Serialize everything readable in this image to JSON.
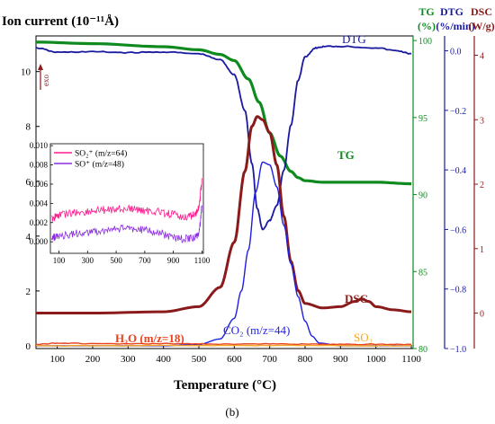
{
  "chart_data": {
    "type": "line",
    "panel_label": "(b)",
    "xlabel": "Temperature (°C)",
    "xlim": [
      40,
      1105
    ],
    "x_ticks": [
      100,
      200,
      300,
      400,
      500,
      600,
      700,
      800,
      900,
      1000,
      1100
    ],
    "left_axis": {
      "label": "Ion current (10⁻¹¹Å)",
      "color": "#000000",
      "ylim": [
        -0.1,
        11.3
      ],
      "ticks": [
        0,
        2,
        4,
        6,
        8,
        10
      ]
    },
    "tg_axis": {
      "label_top": "TG",
      "label_bottom": "(%)",
      "color": "#0f8a1f",
      "ylim": [
        80,
        100.3
      ],
      "ticks": [
        80,
        85,
        90,
        95,
        100
      ]
    },
    "dtg_axis": {
      "label_top": "DTG",
      "label_bottom": "(%/min)",
      "color": "#1a1aa0",
      "ylim": [
        -1.0,
        0.05
      ],
      "ticks": [
        -1.0,
        -0.8,
        -0.6,
        -0.4,
        -0.2,
        0.0
      ]
    },
    "dsc_axis": {
      "label_top": "DSC",
      "label_bottom": "(W/g)",
      "color": "#8b1a1a",
      "ylim": [
        -0.55,
        4.3
      ],
      "ticks": [
        0,
        1,
        2,
        3,
        4
      ]
    },
    "exo_label": "exo",
    "series": [
      {
        "name": "TG",
        "axis": "tg",
        "color": "#0f8a1f",
        "x": [
          40,
          200,
          400,
          500,
          560,
          600,
          640,
          670,
          700,
          730,
          760,
          780,
          800,
          850,
          900,
          1000,
          1100
        ],
        "y": [
          99.9,
          99.8,
          99.6,
          99.4,
          99.1,
          98.7,
          97.5,
          96.0,
          94.0,
          92.5,
          91.5,
          91.1,
          90.9,
          90.8,
          90.8,
          90.8,
          90.7
        ]
      },
      {
        "name": "DTG",
        "axis": "dtg",
        "color": "#1a1aa0",
        "x": [
          40,
          100,
          200,
          300,
          400,
          500,
          560,
          600,
          630,
          650,
          665,
          680,
          700,
          720,
          740,
          760,
          780,
          800,
          830,
          860,
          900,
          1000,
          1060,
          1100
        ],
        "y": [
          0.01,
          -0.005,
          -0.003,
          -0.006,
          -0.004,
          -0.01,
          -0.03,
          -0.08,
          -0.2,
          -0.38,
          -0.53,
          -0.6,
          -0.57,
          -0.52,
          -0.4,
          -0.25,
          -0.1,
          -0.02,
          0.01,
          0.015,
          0.015,
          0.01,
          0.0,
          -0.01
        ]
      },
      {
        "name": "DSC",
        "axis": "dsc",
        "color": "#8b1a1a",
        "x": [
          40,
          200,
          400,
          500,
          560,
          600,
          630,
          650,
          665,
          680,
          700,
          720,
          740,
          760,
          780,
          800,
          850,
          900,
          940,
          960,
          980,
          1000,
          1050,
          1100
        ],
        "y": [
          0.0,
          0.0,
          0.02,
          0.1,
          0.4,
          1.1,
          2.2,
          2.9,
          3.05,
          3.0,
          2.8,
          2.3,
          1.5,
          0.8,
          0.35,
          0.15,
          0.08,
          0.1,
          0.18,
          0.22,
          0.18,
          0.1,
          0.05,
          0.02
        ]
      },
      {
        "name": "CO2 (m/z=44)",
        "axis": "left",
        "color": "#1e1ee0",
        "x": [
          40,
          400,
          500,
          560,
          600,
          620,
          640,
          660,
          680,
          700,
          720,
          740,
          760,
          780,
          800,
          820,
          840,
          900,
          1100
        ],
        "y": [
          0.0,
          0.0,
          0.05,
          0.25,
          1.0,
          2.0,
          3.5,
          5.6,
          6.7,
          6.6,
          5.8,
          4.4,
          3.0,
          1.8,
          0.9,
          0.35,
          0.1,
          0.0,
          0.0
        ]
      },
      {
        "name": "H2O (m/z=18)",
        "axis": "left",
        "color": "#e8421e",
        "x": [
          40,
          100,
          200,
          300,
          400,
          500,
          600,
          700,
          800,
          900,
          1000,
          1100
        ],
        "y": [
          0.05,
          0.1,
          0.08,
          0.07,
          0.08,
          0.07,
          0.06,
          0.07,
          0.06,
          0.06,
          0.05,
          0.05
        ]
      },
      {
        "name": "SO2",
        "axis": "left",
        "color": "#f5a623",
        "x": [
          40,
          200,
          400,
          600,
          800,
          1000,
          1100
        ],
        "y": [
          0.0,
          0.0,
          0.01,
          0.01,
          0.01,
          0.0,
          0.0
        ]
      }
    ],
    "curve_labels": {
      "dtg": "DTG",
      "tg": "TG",
      "dsc": "DSC",
      "co2": "CO₂ (m/z=44)",
      "h2o": "H₂O (m/z=18)",
      "so2": "SO₂"
    },
    "inset": {
      "type": "line",
      "xlim": [
        40,
        1110
      ],
      "ylim": [
        -0.0012,
        0.0102
      ],
      "x_ticks": [
        100,
        300,
        500,
        700,
        900,
        1100
      ],
      "y_ticks": [
        0.0,
        0.002,
        0.004,
        0.006,
        0.008,
        0.01
      ],
      "y_tick_labels": [
        "0.000",
        "0.002",
        "0.004",
        "0.006",
        "0.008",
        "0.010"
      ],
      "series": [
        {
          "name": "SO₂⁺ (m/z=64)",
          "color": "#ff1a8c",
          "x": [
            50,
            100,
            200,
            300,
            400,
            500,
            600,
            700,
            800,
            900,
            1000,
            1050,
            1080,
            1100
          ],
          "y": [
            0.0024,
            0.0028,
            0.003,
            0.0031,
            0.0033,
            0.0034,
            0.0034,
            0.0032,
            0.0031,
            0.0028,
            0.0026,
            0.0028,
            0.0035,
            0.0065
          ]
        },
        {
          "name": "SO⁺ (m/z=48)",
          "color": "#8a2be2",
          "x": [
            50,
            100,
            200,
            300,
            400,
            500,
            600,
            700,
            800,
            900,
            1000,
            1050,
            1080,
            1100
          ],
          "y": [
            0.0004,
            0.0006,
            0.0008,
            0.001,
            0.0011,
            0.0013,
            0.0014,
            0.0012,
            0.001,
            0.0004,
            0.0003,
            0.0004,
            0.0008,
            0.0038
          ]
        }
      ]
    }
  }
}
